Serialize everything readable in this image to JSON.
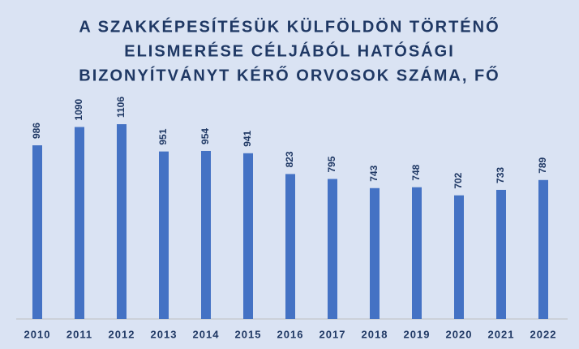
{
  "chart_data": {
    "type": "bar",
    "title": [
      "A SZAKKÉPESÍTÉSÜK KÜLFÖLDÖN TÖRTÉNŐ",
      "ELISMERÉSE CÉLJÁBÓL HATÓSÁGI",
      "BIZONYÍTVÁNYT KÉRŐ ORVOSOK SZÁMA, FŐ"
    ],
    "categories": [
      "2010",
      "2011",
      "2012",
      "2013",
      "2014",
      "2015",
      "2016",
      "2017",
      "2018",
      "2019",
      "2020",
      "2021",
      "2022"
    ],
    "values": [
      986,
      1090,
      1106,
      951,
      954,
      941,
      823,
      795,
      743,
      748,
      702,
      733,
      789
    ],
    "color": "#4472c4"
  }
}
